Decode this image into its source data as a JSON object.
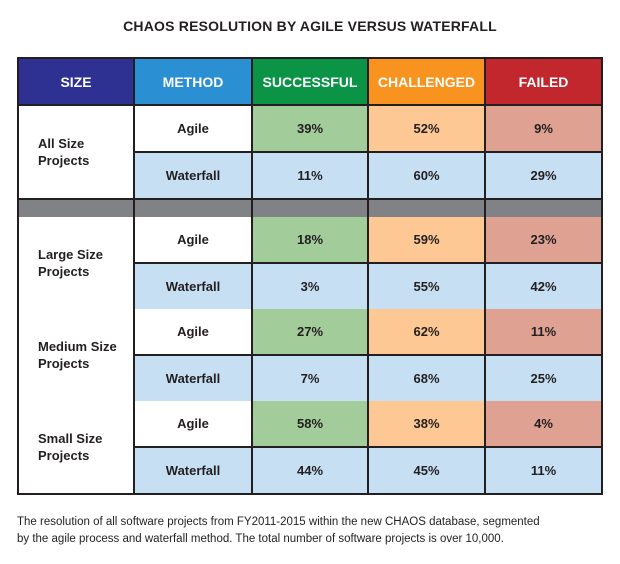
{
  "title": "CHAOS RESOLUTION BY AGILE VERSUS WATERFALL",
  "colors": {
    "border": "#231f20",
    "header_size": "#2e3192",
    "header_method": "#2b8fd3",
    "header_successful": "#0b9446",
    "header_challenged": "#f7931e",
    "header_failed": "#c1272d",
    "successful_fill": "#a3cc9b",
    "challenged_fill": "#fdc894",
    "failed_fill": "#dfa192",
    "waterfall_fill": "#c6dff3",
    "separator": "#808285",
    "white": "#ffffff"
  },
  "chart_data": {
    "type": "table",
    "columns": [
      "SIZE",
      "METHOD",
      "SUCCESSFUL",
      "CHALLENGED",
      "FAILED"
    ],
    "groups": [
      {
        "size": "All Size\nProjects",
        "rows": [
          {
            "method": "Agile",
            "successful": "39%",
            "challenged": "52%",
            "failed": "9%"
          },
          {
            "method": "Waterfall",
            "successful": "11%",
            "challenged": "60%",
            "failed": "29%"
          }
        ]
      },
      {
        "size": "Large Size\nProjects",
        "rows": [
          {
            "method": "Agile",
            "successful": "18%",
            "challenged": "59%",
            "failed": "23%"
          },
          {
            "method": "Waterfall",
            "successful": "3%",
            "challenged": "55%",
            "failed": "42%"
          }
        ]
      },
      {
        "size": "Medium Size\nProjects",
        "rows": [
          {
            "method": "Agile",
            "successful": "27%",
            "challenged": "62%",
            "failed": "11%"
          },
          {
            "method": "Waterfall",
            "successful": "7%",
            "challenged": "68%",
            "failed": "25%"
          }
        ]
      },
      {
        "size": "Small Size\nProjects",
        "rows": [
          {
            "method": "Agile",
            "successful": "58%",
            "challenged": "38%",
            "failed": "4%"
          },
          {
            "method": "Waterfall",
            "successful": "44%",
            "challenged": "45%",
            "failed": "11%"
          }
        ]
      }
    ]
  },
  "caption": "The resolution of all software projects from FY2011-2015 within the new CHAOS database, segmented\nby the agile process and waterfall method. The total number of software projects is over 10,000."
}
